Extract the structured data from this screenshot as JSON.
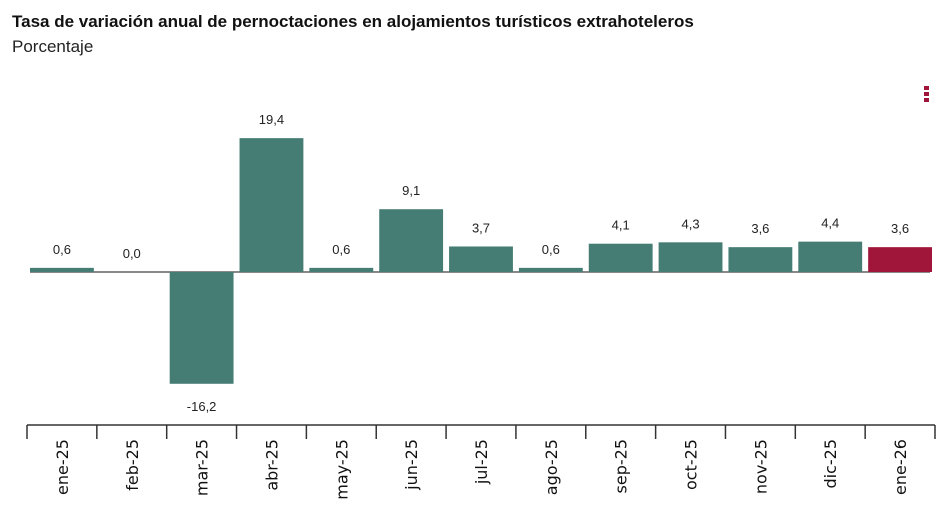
{
  "chart_data": {
    "type": "bar",
    "title": "Tasa de variación anual de pernoctaciones en alojamientos turísticos extrahoteleros",
    "subtitle": "Porcentaje",
    "categories": [
      "ene-25",
      "feb-25",
      "mar-25",
      "abr-25",
      "may-25",
      "jun-25",
      "jul-25",
      "ago-25",
      "sep-25",
      "oct-25",
      "nov-25",
      "dic-25",
      "ene-26"
    ],
    "values": [
      0.6,
      0.0,
      -16.2,
      19.4,
      0.6,
      9.1,
      3.7,
      0.6,
      4.1,
      4.3,
      3.6,
      4.4,
      3.6
    ],
    "data_labels": [
      "0,6",
      "0,0",
      "-16,2",
      "19,4",
      "0,6",
      "9,1",
      "3,7",
      "0,6",
      "4,1",
      "4,3",
      "3,6",
      "4,4",
      "3,6"
    ],
    "highlight_index": 12,
    "colors": {
      "bar": "#457c74",
      "highlight": "#a0163a",
      "zero_line": "#888888"
    },
    "grid": false,
    "legend": "none"
  },
  "menu_icon": "three-dots-vertical-icon"
}
